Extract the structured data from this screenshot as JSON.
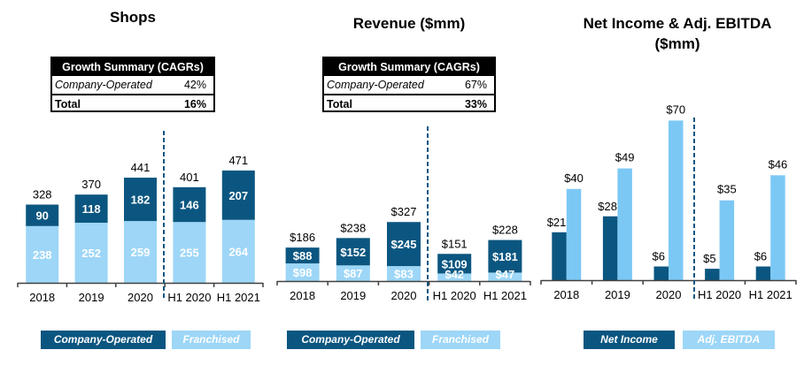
{
  "colors": {
    "company_operated": "#0B5680",
    "franchised": "#9DD6F7",
    "net_income": "#0B5680",
    "adj_ebitda": "#7CC8F5",
    "divider": "#0B5680"
  },
  "chart_data": [
    {
      "id": "shops",
      "type": "bar",
      "stacked": true,
      "title": "Shops",
      "categories": [
        "2018",
        "2019",
        "2020",
        "H1 2020",
        "H1 2021"
      ],
      "series": [
        {
          "name": "Franchised",
          "values": [
            238,
            252,
            259,
            255,
            264
          ],
          "labels": [
            "238",
            "252",
            "259",
            "255",
            "264"
          ]
        },
        {
          "name": "Company-Operated",
          "values": [
            90,
            118,
            182,
            146,
            207
          ],
          "labels": [
            "90",
            "118",
            "182",
            "146",
            "207"
          ]
        }
      ],
      "totals": [
        328,
        370,
        441,
        401,
        471
      ],
      "total_labels": [
        "328",
        "370",
        "441",
        "401",
        "471"
      ],
      "divider_after_category": "2020",
      "legend": [
        "Company-Operated",
        "Franchised"
      ],
      "legend_placement": "bottom",
      "growth_summary": {
        "header": "Growth Summary (CAGRs)",
        "rows": [
          {
            "label": "Company-Operated",
            "value": "42%"
          },
          {
            "label": "Total",
            "value": "16%"
          }
        ]
      }
    },
    {
      "id": "revenue",
      "type": "bar",
      "stacked": true,
      "title": "Revenue ($mm)",
      "categories": [
        "2018",
        "2019",
        "2020",
        "H1 2020",
        "H1 2021"
      ],
      "series": [
        {
          "name": "Franchised",
          "values": [
            98,
            87,
            83,
            42,
            47
          ],
          "labels": [
            "$98",
            "$87",
            "$83",
            "$42",
            "$47"
          ]
        },
        {
          "name": "Company-Operated",
          "values": [
            88,
            152,
            245,
            109,
            181
          ],
          "labels": [
            "$88",
            "$152",
            "$245",
            "$109",
            "$181"
          ]
        }
      ],
      "totals": [
        186,
        238,
        327,
        151,
        228
      ],
      "total_labels": [
        "$186",
        "$238",
        "$327",
        "$151",
        "$228"
      ],
      "divider_after_category": "2020",
      "legend": [
        "Company-Operated",
        "Franchised"
      ],
      "legend_placement": "bottom",
      "growth_summary": {
        "header": "Growth Summary (CAGRs)",
        "rows": [
          {
            "label": "Company-Operated",
            "value": "67%"
          },
          {
            "label": "Total",
            "value": "33%"
          }
        ]
      }
    },
    {
      "id": "ni_ebitda",
      "type": "bar",
      "stacked": false,
      "title": "Net Income & Adj. EBITDA ($mm)",
      "title_lines": [
        "Net Income & Adj. EBITDA",
        "($mm)"
      ],
      "categories": [
        "2018",
        "2019",
        "2020",
        "H1 2020",
        "H1 2021"
      ],
      "series": [
        {
          "name": "Net Income",
          "values": [
            21,
            28,
            6,
            5,
            6
          ],
          "labels": [
            "$21",
            "$28",
            "$6",
            "$5",
            "$6"
          ]
        },
        {
          "name": "Adj. EBITDA",
          "values": [
            40,
            49,
            70,
            35,
            46
          ],
          "labels": [
            "$40",
            "$49",
            "$70",
            "$35",
            "$46"
          ]
        }
      ],
      "divider_after_category": "2020",
      "legend": [
        "Net Income",
        "Adj. EBITDA"
      ],
      "legend_placement": "bottom"
    }
  ]
}
